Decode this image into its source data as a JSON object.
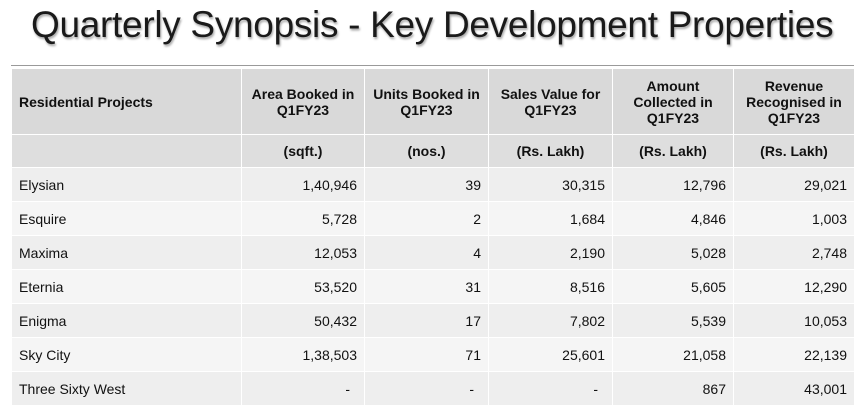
{
  "title": "Quarterly Synopsis - Key Development Properties",
  "table": {
    "headers": [
      "Residential Projects",
      "Area Booked in Q1FY23",
      "Units Booked in Q1FY23",
      "Sales Value for Q1FY23",
      "Amount Collected in Q1FY23",
      "Revenue Recognised in Q1FY23"
    ],
    "units": [
      "",
      "(sqft.)",
      "(nos.)",
      "(Rs. Lakh)",
      "(Rs. Lakh)",
      "(Rs. Lakh)"
    ],
    "rows": [
      [
        "Elysian",
        "1,40,946",
        "39",
        "30,315",
        "12,796",
        "29,021"
      ],
      [
        "Esquire",
        "5,728",
        "2",
        "1,684",
        "4,846",
        "1,003"
      ],
      [
        "Maxima",
        "12,053",
        "4",
        "2,190",
        "5,028",
        "2,748"
      ],
      [
        "Eternia",
        "53,520",
        "31",
        "8,516",
        "5,605",
        "12,290"
      ],
      [
        "Enigma",
        "50,432",
        "17",
        "7,802",
        "5,539",
        "10,053"
      ],
      [
        "Sky City",
        "1,38,503",
        "71",
        "25,601",
        "21,058",
        "22,139"
      ],
      [
        "Three Sixty West",
        "-",
        "-",
        "-",
        "867",
        "43,001"
      ]
    ]
  },
  "colors": {
    "header_bg": "#d9d9d9",
    "row_bg": "#eeeeee",
    "row_alt_bg": "#f5f5f5",
    "title_color": "#1a1a1a"
  }
}
